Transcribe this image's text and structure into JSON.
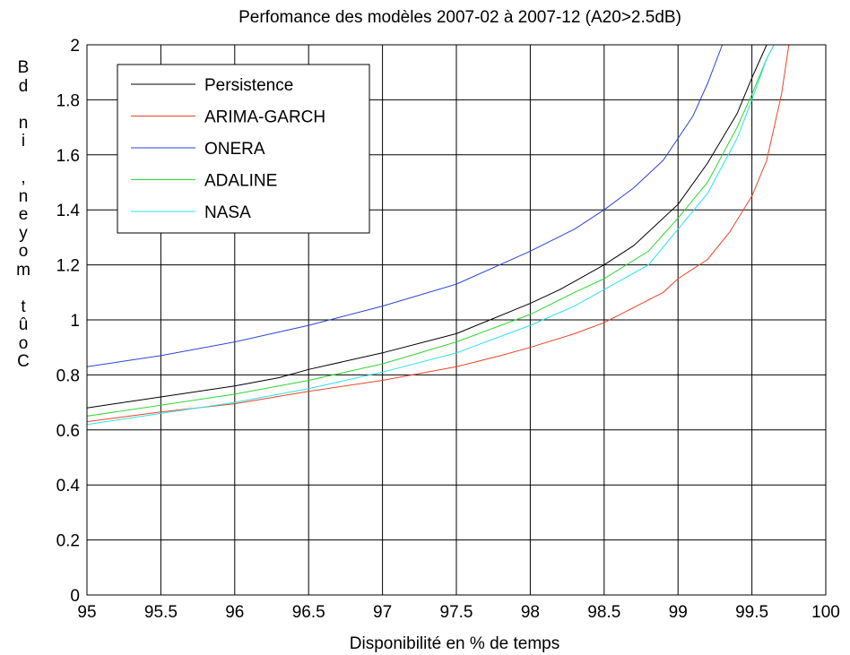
{
  "chart_data": {
    "type": "line",
    "title": "Perfomance des modèles 2007-02 à 2007-12 (A20>2.5dB)",
    "xlabel": "Disponibilité en % de temps",
    "ylabel_glyphs": [
      "B",
      "d",
      "",
      "n",
      "i",
      "",
      ",",
      "n",
      "e",
      "y",
      "o",
      "m",
      "",
      "t",
      "û",
      "o",
      "C"
    ],
    "xlim": [
      95,
      100
    ],
    "ylim": [
      0,
      2
    ],
    "xticks": [
      "95",
      "95.5",
      "96",
      "96.5",
      "97",
      "97.5",
      "98",
      "98.5",
      "99",
      "99.5",
      "100"
    ],
    "yticks": [
      "0",
      "0.2",
      "0.4",
      "0.6",
      "0.8",
      "1",
      "1.2",
      "1.4",
      "1.6",
      "1.8",
      "2"
    ],
    "grid": true,
    "legend_position": "top-left",
    "series": [
      {
        "name": "Persistence",
        "color": "#000000",
        "x": [
          95,
          95.5,
          96,
          96.3,
          96.5,
          97,
          97.5,
          98,
          98.2,
          98.5,
          98.7,
          99,
          99.2,
          99.4,
          99.5,
          99.6
        ],
        "y": [
          0.68,
          0.72,
          0.76,
          0.79,
          0.82,
          0.88,
          0.95,
          1.06,
          1.11,
          1.2,
          1.27,
          1.42,
          1.57,
          1.75,
          1.88,
          2.0
        ]
      },
      {
        "name": "ARIMA-GARCH",
        "color": "#e8462a",
        "x": [
          95,
          95.5,
          96,
          96.5,
          97,
          97.5,
          97.8,
          98,
          98.3,
          98.5,
          98.9,
          99,
          99.2,
          99.35,
          99.5,
          99.6,
          99.7,
          99.75
        ],
        "y": [
          0.63,
          0.665,
          0.695,
          0.74,
          0.78,
          0.83,
          0.87,
          0.9,
          0.95,
          0.99,
          1.1,
          1.15,
          1.22,
          1.32,
          1.45,
          1.58,
          1.82,
          2.0
        ]
      },
      {
        "name": "ONERA",
        "color": "#2b45d6",
        "x": [
          95,
          95.5,
          96,
          96.5,
          97,
          97.5,
          98,
          98.3,
          98.5,
          98.7,
          98.9,
          99,
          99.1,
          99.2,
          99.3
        ],
        "y": [
          0.83,
          0.87,
          0.92,
          0.98,
          1.05,
          1.13,
          1.25,
          1.33,
          1.4,
          1.48,
          1.58,
          1.66,
          1.74,
          1.86,
          2.0
        ]
      },
      {
        "name": "ADALINE",
        "color": "#2fd62f",
        "x": [
          95,
          95.5,
          96,
          96.5,
          97,
          97.5,
          98,
          98.3,
          98.5,
          98.8,
          99,
          99.2,
          99.4,
          99.5,
          99.6,
          99.65
        ],
        "y": [
          0.65,
          0.69,
          0.73,
          0.78,
          0.84,
          0.92,
          1.02,
          1.1,
          1.15,
          1.25,
          1.37,
          1.5,
          1.7,
          1.82,
          1.95,
          2.0
        ]
      },
      {
        "name": "NASA",
        "color": "#2ee0e8",
        "x": [
          95,
          95.5,
          96,
          96.5,
          97,
          97.5,
          98,
          98.3,
          98.5,
          98.8,
          99,
          99.2,
          99.4,
          99.5,
          99.6,
          99.65
        ],
        "y": [
          0.62,
          0.66,
          0.7,
          0.75,
          0.81,
          0.88,
          0.98,
          1.05,
          1.11,
          1.2,
          1.33,
          1.46,
          1.66,
          1.8,
          1.95,
          2.0
        ]
      }
    ]
  }
}
